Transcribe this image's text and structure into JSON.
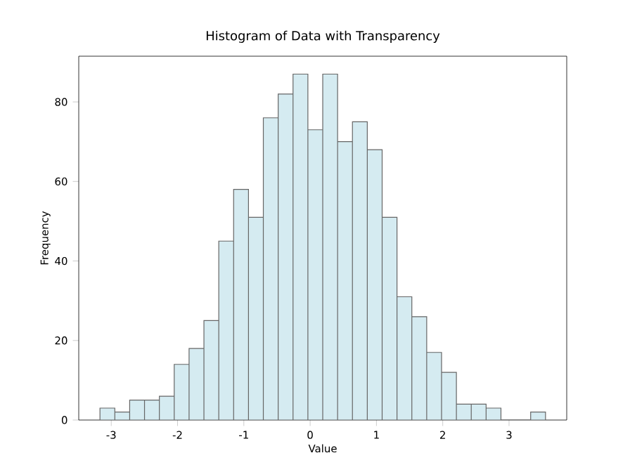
{
  "chart_data": {
    "type": "histogram",
    "title": "Histogram of Data with Transparency",
    "xlabel": "Value",
    "ylabel": "Frequency",
    "bins": [
      -3.17,
      -2.946,
      -2.722,
      -2.498,
      -2.274,
      -2.05,
      -1.826,
      -1.602,
      -1.378,
      -1.154,
      -0.93,
      -0.706,
      -0.482,
      -0.258,
      -0.034,
      0.19,
      0.414,
      0.638,
      0.862,
      1.086,
      1.31,
      1.534,
      1.758,
      1.982,
      2.206,
      2.43,
      2.654,
      2.878,
      3.102,
      3.326,
      3.55
    ],
    "values": [
      3,
      2,
      5,
      5,
      6,
      14,
      18,
      25,
      45,
      58,
      51,
      76,
      82,
      87,
      73,
      87,
      70,
      75,
      68,
      51,
      31,
      26,
      17,
      12,
      4,
      4,
      3,
      0,
      0,
      2
    ],
    "color": "#d5ebf1",
    "xlim": [
      -3.49,
      3.87
    ],
    "ylim": [
      0,
      91.5
    ],
    "xticks": [
      -3,
      -2,
      -1,
      0,
      1,
      2,
      3
    ],
    "yticks": [
      0,
      20,
      40,
      60,
      80
    ],
    "grid": false
  }
}
